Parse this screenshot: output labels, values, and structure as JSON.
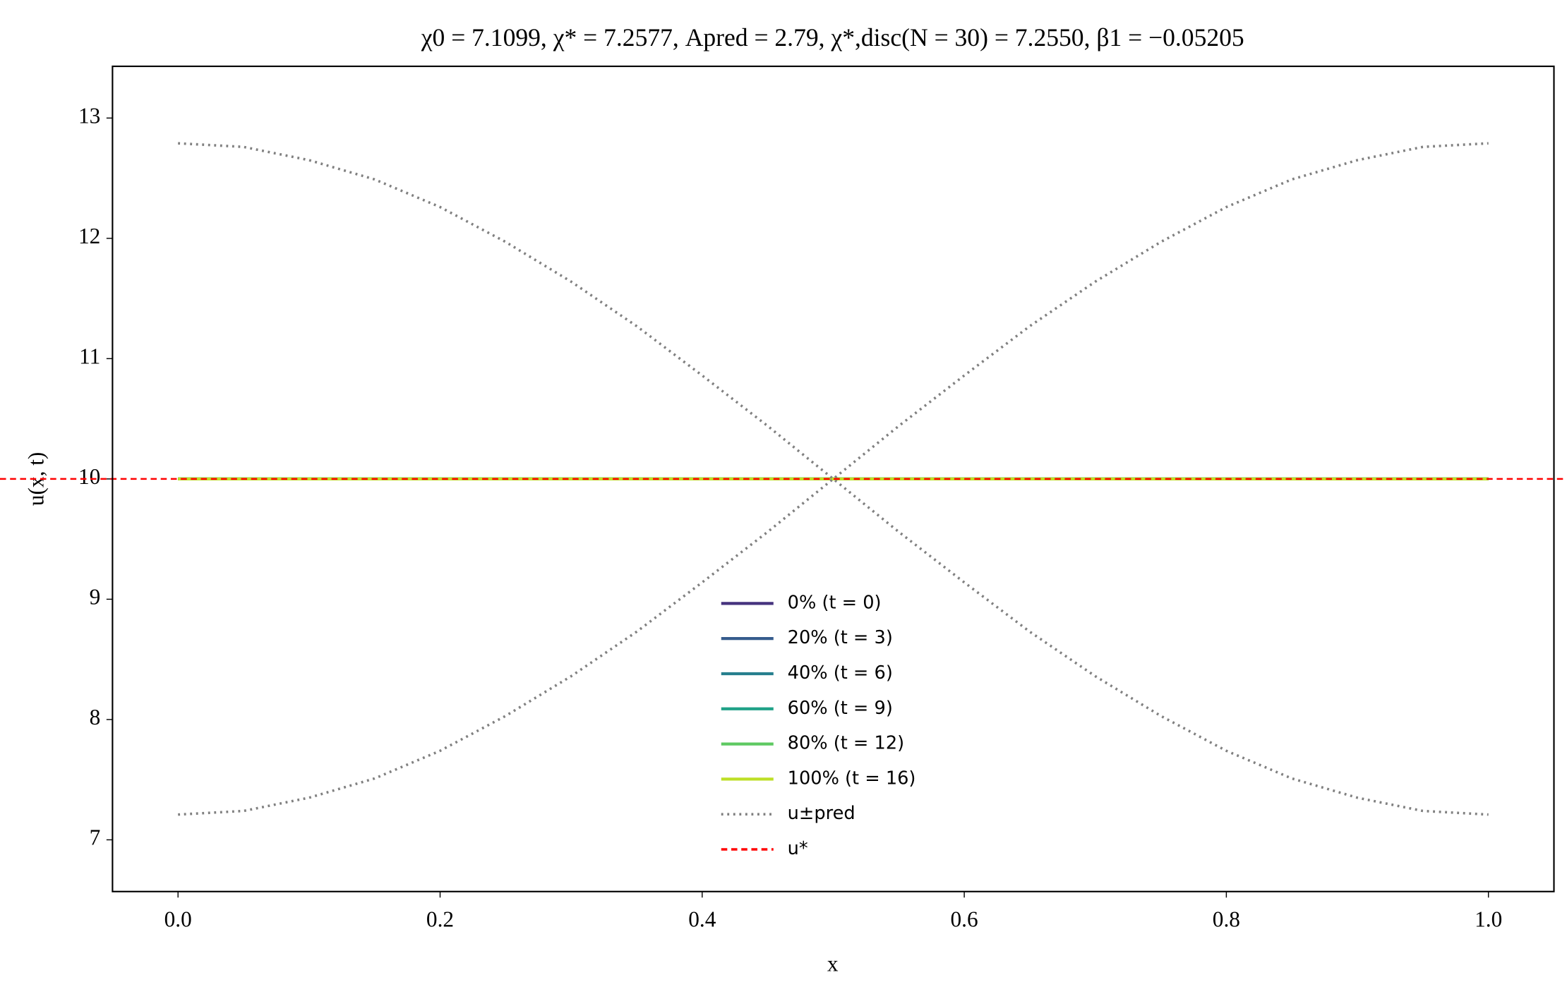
{
  "chart_data": {
    "type": "line",
    "title": "χ0 = 7.1099,  χ* = 7.2577,  Apred = 2.79,  χ*,disc(N = 30) = 7.2550,  β1 = −0.05205",
    "xlabel": "x",
    "ylabel": "u(x, t)",
    "xlim": [
      -0.05,
      1.05
    ],
    "ylim": [
      6.57,
      13.43
    ],
    "xticks": [
      {
        "value": 0,
        "label": "0.0"
      },
      0.2,
      0.4,
      0.6,
      0.8,
      {
        "value": 1,
        "label": "1.0"
      }
    ],
    "yticks": [
      7,
      8,
      9,
      10,
      11,
      12,
      13
    ],
    "series": [
      {
        "name": "0% (t = 0)",
        "color": "#46337e",
        "linestyle": "solid",
        "x": [
          0,
          1
        ],
        "values": [
          10,
          10
        ]
      },
      {
        "name": "20% (t = 3)",
        "color": "#365c8d",
        "linestyle": "solid",
        "x": [
          0,
          1
        ],
        "values": [
          10,
          10
        ]
      },
      {
        "name": "40% (t = 6)",
        "color": "#277f8e",
        "linestyle": "solid",
        "x": [
          0,
          1
        ],
        "values": [
          10,
          10
        ]
      },
      {
        "name": "60% (t = 9)",
        "color": "#1fa187",
        "linestyle": "solid",
        "x": [
          0,
          1
        ],
        "values": [
          10,
          10
        ]
      },
      {
        "name": "80% (t = 12)",
        "color": "#5ec962",
        "linestyle": "solid",
        "x": [
          0,
          1
        ],
        "values": [
          10,
          10
        ]
      },
      {
        "name": "100% (t = 16)",
        "color": "#bddf26",
        "linestyle": "solid",
        "x": [
          0,
          1
        ],
        "values": [
          10,
          10
        ]
      },
      {
        "name": "u±pred",
        "color": "#808080",
        "linestyle": "dotted",
        "x": [
          0,
          0.05,
          0.1,
          0.15,
          0.2,
          0.25,
          0.3,
          0.35,
          0.4,
          0.45,
          0.5,
          0.55,
          0.6,
          0.65,
          0.7,
          0.75,
          0.8,
          0.85,
          0.9,
          0.95,
          1
        ],
        "values": [
          12.79,
          12.76,
          12.65,
          12.49,
          12.26,
          11.97,
          11.64,
          11.27,
          10.86,
          10.44,
          10.0,
          9.56,
          9.14,
          8.73,
          8.36,
          8.03,
          7.74,
          7.51,
          7.35,
          7.24,
          7.21
        ]
      },
      {
        "name": null,
        "color": "#808080",
        "linestyle": "dotted",
        "x": [
          0,
          0.05,
          0.1,
          0.15,
          0.2,
          0.25,
          0.3,
          0.35,
          0.4,
          0.45,
          0.5,
          0.55,
          0.6,
          0.65,
          0.7,
          0.75,
          0.8,
          0.85,
          0.9,
          0.95,
          1
        ],
        "values": [
          7.21,
          7.24,
          7.35,
          7.51,
          7.74,
          8.03,
          8.36,
          8.73,
          9.14,
          9.56,
          10.0,
          10.44,
          10.86,
          11.27,
          11.64,
          11.97,
          12.26,
          12.49,
          12.65,
          12.76,
          12.79
        ]
      }
    ],
    "hlines": [
      {
        "name": "u*",
        "value": 10,
        "color": "#ff0000",
        "linestyle": "dashed"
      }
    ]
  }
}
